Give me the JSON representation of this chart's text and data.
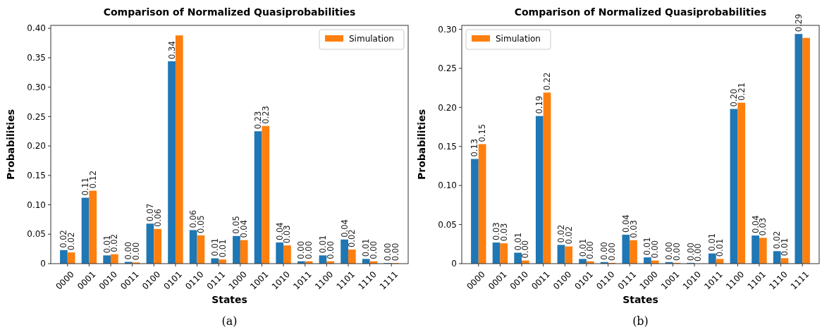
{
  "chart_data": [
    {
      "type": "bar",
      "title": "Comparison of Normalized Quasiprobabilities",
      "xlabel": "States",
      "ylabel": "Probabilities",
      "categories": [
        "0000",
        "0001",
        "0010",
        "0011",
        "0100",
        "0101",
        "0110",
        "0111",
        "1000",
        "1001",
        "1010",
        "1011",
        "1100",
        "1101",
        "1110",
        "1111"
      ],
      "series": [
        {
          "color": "#1f77b4",
          "values": [
            0.023,
            0.112,
            0.014,
            0.003,
            0.068,
            0.344,
            0.057,
            0.009,
            0.047,
            0.225,
            0.036,
            0.004,
            0.014,
            0.041,
            0.008,
            0.001
          ],
          "value_labels": [
            "0.02",
            "0.11",
            "0.01",
            "0.00",
            "0.07",
            "0.34",
            "0.06",
            "0.01",
            "0.05",
            "0.23",
            "0.04",
            "0.00",
            "0.01",
            "0.04",
            "0.01",
            "0.00"
          ]
        },
        {
          "name": "Simulation",
          "color": "#ff7f0e",
          "values": [
            0.019,
            0.124,
            0.016,
            0.002,
            0.059,
            0.388,
            0.048,
            0.007,
            0.04,
            0.234,
            0.031,
            0.004,
            0.004,
            0.024,
            0.004,
            0.001
          ],
          "value_labels": [
            "0.02",
            "0.12",
            "0.02",
            "0.00",
            "0.06",
            null,
            "0.05",
            "0.01",
            "0.04",
            "0.23",
            "0.03",
            "0.00",
            "0.00",
            "0.02",
            "0.00",
            "0.00"
          ]
        }
      ],
      "ylim": [
        0,
        0.405
      ],
      "yticks": [
        0,
        {
          "value": 0.05,
          "label": "0.05"
        },
        {
          "value": 0.1,
          "label": "0.10"
        },
        {
          "value": 0.15,
          "label": "0.15"
        },
        {
          "value": 0.2,
          "label": "0.20"
        },
        {
          "value": 0.25,
          "label": "0.25"
        },
        {
          "value": 0.3,
          "label": "0.30"
        },
        {
          "value": 0.35,
          "label": "0.35"
        },
        {
          "value": 0.4,
          "label": "0.40"
        }
      ],
      "legend": "top right",
      "annotations": [
        "(a)"
      ]
    },
    {
      "type": "bar",
      "title": "Comparison of Normalized Quasiprobabilities",
      "xlabel": "States",
      "ylabel": "Probabilities",
      "categories": [
        "0000",
        "0001",
        "0010",
        "0011",
        "0100",
        "0101",
        "0110",
        "0111",
        "1000",
        "1001",
        "1010",
        "1011",
        "1100",
        "1101",
        "1110",
        "1111"
      ],
      "series": [
        {
          "color": "#1f77b4",
          "values": [
            0.134,
            0.027,
            0.014,
            0.189,
            0.024,
            0.006,
            0.002,
            0.037,
            0.008,
            0.002,
            0.001,
            0.013,
            0.198,
            0.036,
            0.016,
            0.294
          ],
          "value_labels": [
            "0.13",
            "0.03",
            "0.01",
            "0.19",
            "0.02",
            "0.01",
            "0.00",
            "0.04",
            "0.01",
            "0.00",
            "0.00",
            "0.01",
            "0.20",
            "0.04",
            "0.02",
            "0.29"
          ]
        },
        {
          "name": "Simulation",
          "color": "#ff7f0e",
          "values": [
            0.153,
            0.026,
            0.004,
            0.219,
            0.022,
            0.003,
            0.001,
            0.03,
            0.004,
            0.001,
            0,
            0.006,
            0.206,
            0.033,
            0.007,
            0.289
          ],
          "value_labels": [
            "0.15",
            "0.03",
            "0.00",
            "0.22",
            "0.02",
            "0.00",
            "0.00",
            "0.03",
            "0.00",
            "0.00",
            "0.00",
            "0.01",
            "0.21",
            "0.03",
            "0.01",
            null
          ]
        }
      ],
      "ylim": [
        0,
        0.305
      ],
      "yticks": [
        0,
        {
          "value": 0.05,
          "label": "0.05"
        },
        {
          "value": 0.1,
          "label": "0.10"
        },
        {
          "value": 0.15,
          "label": "0.15"
        },
        {
          "value": 0.2,
          "label": "0.20"
        },
        {
          "value": 0.25,
          "label": "0.25"
        },
        {
          "value": 0.3,
          "label": "0.30"
        }
      ],
      "legend": "top left",
      "annotations": [
        "(b)"
      ]
    }
  ]
}
